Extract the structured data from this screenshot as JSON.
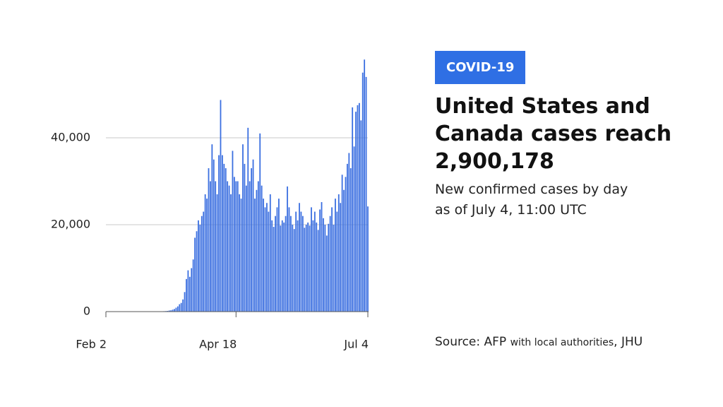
{
  "chart_data": {
    "type": "bar",
    "tag": "COVID-19",
    "title": [
      "United States and",
      "Canada cases reach",
      "2,900,178"
    ],
    "subtitle": [
      "New confirmed cases by day",
      "as of July 4, 11:00 UTC"
    ],
    "source": [
      "Source: AFP",
      "with local authorities",
      ", JHU"
    ],
    "color": "#3b6fe0",
    "ylim": [
      0,
      60000
    ],
    "yticks": [
      0,
      {
        "value": 20000,
        "label": "20,000"
      },
      {
        "value": 40000,
        "label": "40,000"
      }
    ],
    "grid": true,
    "categories": [
      "Feb 2",
      null,
      null,
      null,
      null,
      null,
      null,
      null,
      null,
      null,
      null,
      null,
      null,
      null,
      null,
      null,
      null,
      null,
      null,
      null,
      null,
      null,
      null,
      null,
      null,
      null,
      null,
      null,
      null,
      null,
      null,
      null,
      null,
      null,
      null,
      null,
      null,
      null,
      null,
      null,
      null,
      null,
      null,
      null,
      null,
      null,
      null,
      null,
      null,
      null,
      null,
      null,
      null,
      null,
      null,
      null,
      null,
      null,
      null,
      null,
      null,
      null,
      null,
      null,
      null,
      null,
      null,
      null,
      null,
      null,
      null,
      null,
      null,
      null,
      null,
      null,
      "Apr 18",
      null,
      null,
      null,
      null,
      null,
      null,
      null,
      null,
      null,
      null,
      null,
      null,
      null,
      null,
      null,
      null,
      null,
      null,
      null,
      null,
      null,
      null,
      null,
      null,
      null,
      null,
      null,
      null,
      null,
      null,
      null,
      null,
      null,
      null,
      null,
      null,
      null,
      null,
      null,
      null,
      null,
      null,
      null,
      null,
      null,
      null,
      null,
      null,
      null,
      null,
      null,
      null,
      null,
      null,
      null,
      null,
      null,
      null,
      null,
      null,
      null,
      null,
      null,
      null,
      null,
      null,
      null,
      null,
      null,
      null,
      null,
      null,
      null,
      null,
      null,
      null,
      "Jul 4"
    ],
    "values": [
      0,
      0,
      0,
      0,
      1,
      0,
      0,
      0,
      0,
      1,
      0,
      0,
      0,
      0,
      0,
      0,
      0,
      0,
      0,
      1,
      0,
      0,
      0,
      0,
      0,
      3,
      5,
      10,
      15,
      20,
      25,
      30,
      60,
      80,
      100,
      120,
      160,
      250,
      300,
      450,
      600,
      900,
      1200,
      1700,
      2000,
      2800,
      4500,
      7500,
      9500,
      8000,
      10000,
      12000,
      17000,
      18500,
      21000,
      20000,
      22000,
      23000,
      27000,
      26000,
      33000,
      30000,
      38500,
      35000,
      30000,
      27000,
      36000,
      48700,
      36000,
      34000,
      33000,
      30000,
      29000,
      27000,
      37000,
      31000,
      30000,
      30000,
      27000,
      26000,
      38500,
      34000,
      29000,
      42300,
      30000,
      33000,
      35000,
      26000,
      28000,
      30000,
      41000,
      29000,
      26000,
      24000,
      25000,
      23000,
      27000,
      21000,
      19500,
      22000,
      24000,
      26000,
      19800,
      21000,
      20500,
      22000,
      28800,
      24000,
      22000,
      20000,
      19000,
      23000,
      21000,
      25000,
      23000,
      22000,
      19300,
      20000,
      20500,
      19800,
      24000,
      21000,
      23000,
      20500,
      18800,
      23500,
      25200,
      21500,
      20000,
      17500,
      20200,
      22000,
      24000,
      20000,
      26000,
      23000,
      27000,
      25000,
      31500,
      28000,
      31000,
      34000,
      36500,
      33000,
      47000,
      38000,
      46000,
      47500,
      48000,
      44000,
      55000,
      58000,
      54000,
      24200
    ]
  }
}
